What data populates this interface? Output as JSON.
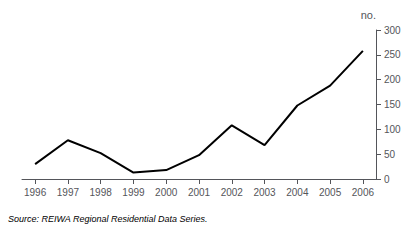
{
  "chart_data": {
    "type": "line",
    "x": [
      1996,
      1997,
      1998,
      1999,
      2000,
      2001,
      2002,
      2003,
      2004,
      2005,
      2006
    ],
    "values": [
      30,
      78,
      52,
      13,
      18,
      48,
      108,
      68,
      148,
      188,
      258
    ],
    "color": "#000000",
    "ylabel": "no.",
    "annotations": [
      "Source: REIWA Regional Residential Data Series."
    ],
    "xlim": [
      1995.6,
      2006.4
    ],
    "xticks": [
      1996,
      1997,
      1998,
      1999,
      2000,
      2001,
      2002,
      2003,
      2004,
      2005,
      2006
    ],
    "ylim": [
      0,
      300
    ],
    "yticks": [
      0,
      50,
      100,
      150,
      200,
      250,
      300
    ],
    "grid": false
  }
}
